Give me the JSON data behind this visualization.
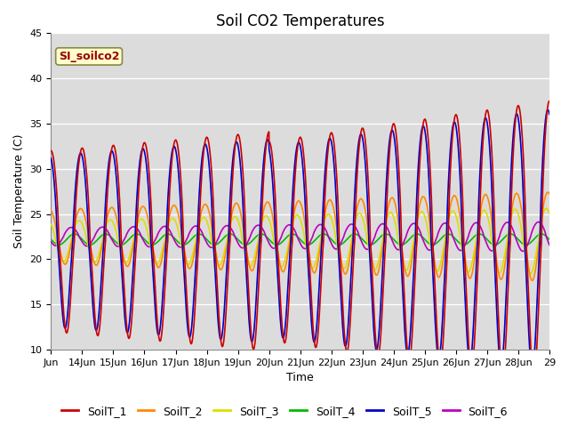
{
  "title": "Soil CO2 Temperatures",
  "xlabel": "Time",
  "ylabel": "Soil Temperature (C)",
  "xlim_days": [
    13,
    29
  ],
  "ylim": [
    10,
    45
  ],
  "yticks": [
    10,
    15,
    20,
    25,
    30,
    35,
    40,
    45
  ],
  "xtick_labels": [
    "Jun",
    "14Jun",
    "15Jun",
    "16Jun",
    "17Jun",
    "18Jun",
    "19Jun",
    "20Jun",
    "21Jun",
    "22Jun",
    "23Jun",
    "24Jun",
    "25Jun",
    "26Jun",
    "27Jun",
    "28Jun",
    "29"
  ],
  "xtick_positions": [
    13,
    14,
    15,
    16,
    17,
    18,
    19,
    20,
    21,
    22,
    23,
    24,
    25,
    26,
    27,
    28,
    29
  ],
  "legend_label": "SI_soilco2",
  "series_names": [
    "SoilT_1",
    "SoilT_2",
    "SoilT_3",
    "SoilT_4",
    "SoilT_5",
    "SoilT_6"
  ],
  "series_colors": [
    "#cc0000",
    "#ff8800",
    "#dddd00",
    "#00bb00",
    "#0000cc",
    "#bb00bb"
  ],
  "plot_bg_color": "#dcdcdc",
  "fig_bg_color": "#ffffff",
  "grid_color": "#ffffff",
  "title_fontsize": 12,
  "axis_label_fontsize": 9,
  "tick_fontsize": 8,
  "legend_fontsize": 9
}
